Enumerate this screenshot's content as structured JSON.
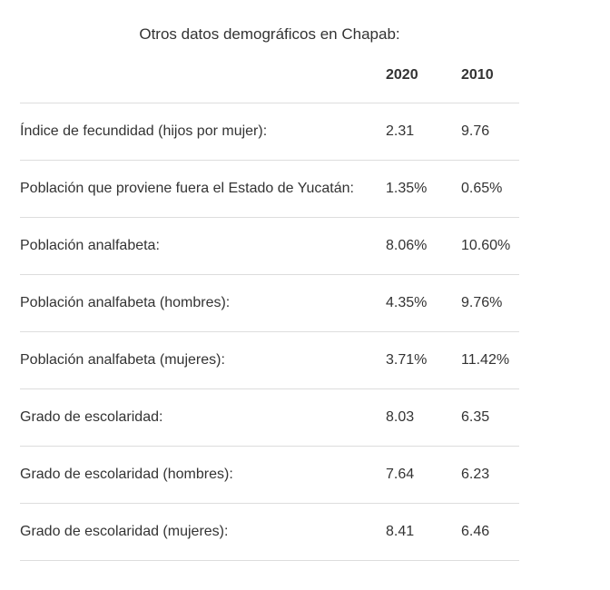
{
  "title": "Otros datos demográficos en Chapab:",
  "colors": {
    "text": "#333333",
    "divider": "#dddddd",
    "background": "#ffffff"
  },
  "table": {
    "columns": [
      "2020",
      "2010"
    ],
    "rows": [
      {
        "label": "Índice de fecundidad (hijos por mujer):",
        "v2020": "2.31",
        "v2010": "9.76"
      },
      {
        "label": "Población que proviene fuera el Estado de Yucatán:",
        "v2020": "1.35%",
        "v2010": "0.65%"
      },
      {
        "label": "Población analfabeta:",
        "v2020": "8.06%",
        "v2010": "10.60%"
      },
      {
        "label": "Población analfabeta (hombres):",
        "v2020": "4.35%",
        "v2010": "9.76%"
      },
      {
        "label": "Población analfabeta (mujeres):",
        "v2020": "3.71%",
        "v2010": "11.42%"
      },
      {
        "label": "Grado de escolaridad:",
        "v2020": "8.03",
        "v2010": "6.35"
      },
      {
        "label": "Grado de escolaridad (hombres):",
        "v2020": "7.64",
        "v2010": "6.23"
      },
      {
        "label": "Grado de escolaridad (mujeres):",
        "v2020": "8.41",
        "v2010": "6.46"
      }
    ]
  }
}
